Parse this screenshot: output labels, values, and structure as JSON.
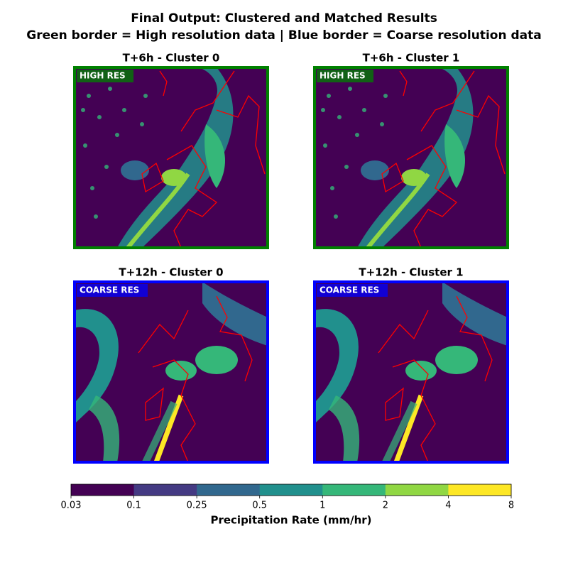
{
  "chart_data": {
    "type": "map",
    "title": [
      "Final Output: Clustered and Matched Results",
      "Green border = High resolution data | Blue border = Coarse resolution data"
    ],
    "panels": [
      {
        "title": "T+6h - Cluster 0",
        "badge": "HIGH RES",
        "border": "#008000"
      },
      {
        "title": "T+6h - Cluster 1",
        "badge": "HIGH RES",
        "border": "#008000"
      },
      {
        "title": "T+12h - Cluster 0",
        "badge": "COARSE RES",
        "border": "#0000ff"
      },
      {
        "title": "T+12h - Cluster 1",
        "badge": "COARSE RES",
        "border": "#0000ff"
      }
    ],
    "colorbar": {
      "label": "Precipitation Rate (mm/hr)",
      "boundaries": [
        0.03,
        0.1,
        0.25,
        0.5,
        1,
        2,
        4,
        8
      ],
      "colors": [
        "#440154",
        "#443a83",
        "#31688e",
        "#21908d",
        "#35b779",
        "#90d743",
        "#fde725"
      ]
    }
  }
}
